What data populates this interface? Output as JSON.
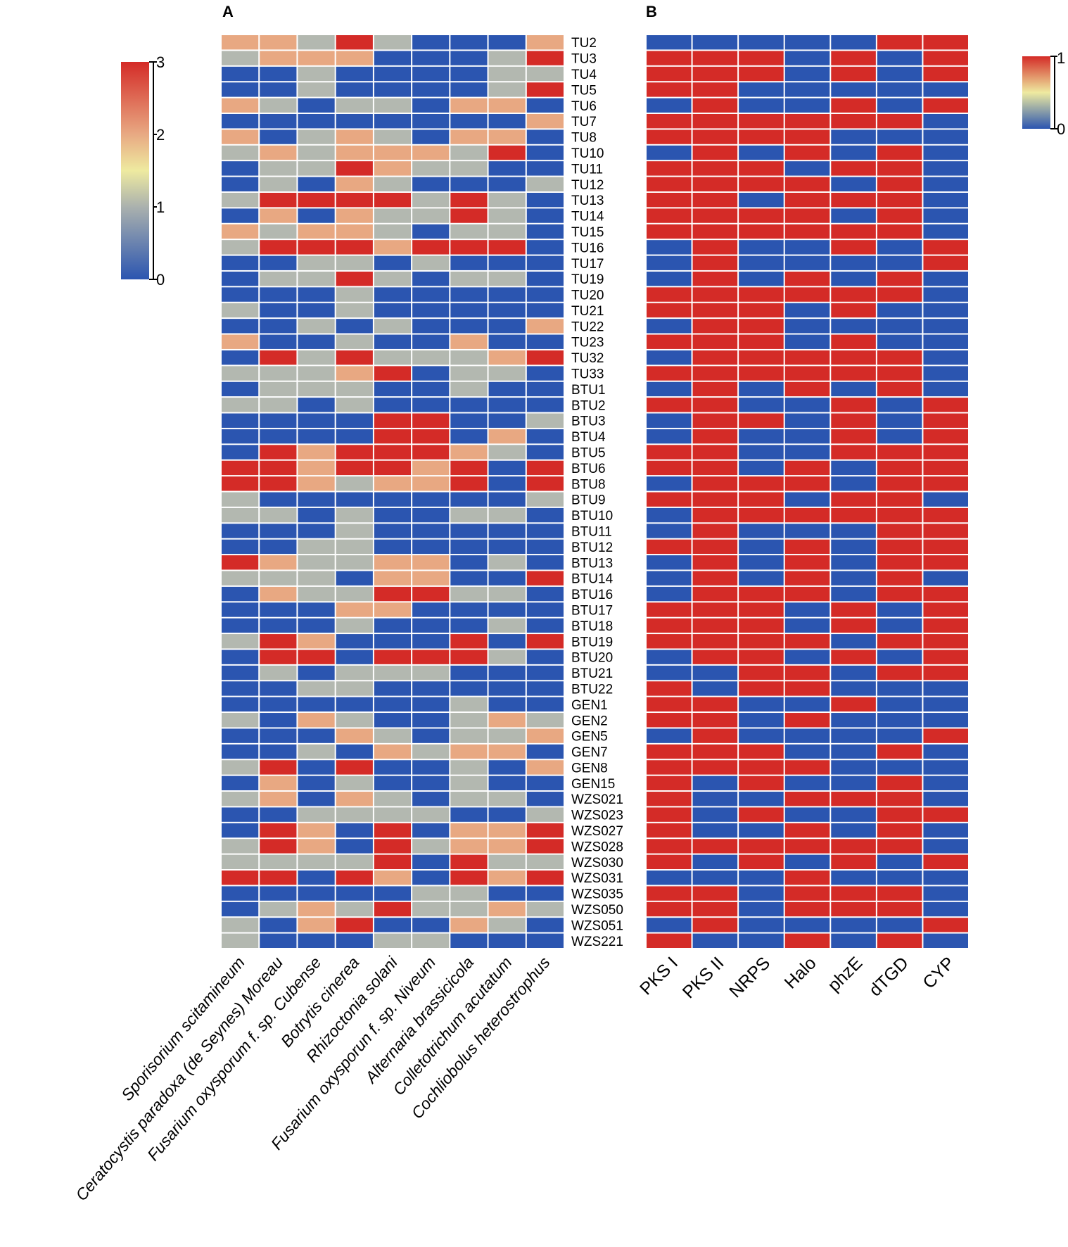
{
  "chart_data": [
    {
      "type": "heatmap",
      "panel_label": "A",
      "rows": [
        "TU2",
        "TU3",
        "TU4",
        "TU5",
        "TU6",
        "TU7",
        "TU8",
        "TU10",
        "TU11",
        "TU12",
        "TU13",
        "TU14",
        "TU15",
        "TU16",
        "TU17",
        "TU19",
        "TU20",
        "TU21",
        "TU22",
        "TU23",
        "TU32",
        "TU33",
        "BTU1",
        "BTU2",
        "BTU3",
        "BTU4",
        "BTU5",
        "BTU6",
        "BTU8",
        "BTU9",
        "BTU10",
        "BTU11",
        "BTU12",
        "BTU13",
        "BTU14",
        "BTU16",
        "BTU17",
        "BTU18",
        "BTU19",
        "BTU20",
        "BTU21",
        "BTU22",
        "GEN1",
        "GEN2",
        "GEN5",
        "GEN7",
        "GEN8",
        "GEN15",
        "WZS021",
        "WZS023",
        "WZS027",
        "WZS028",
        "WZS030",
        "WZS031",
        "WZS035",
        "WZS050",
        "WZS051",
        "WZS221"
      ],
      "columns": [
        "Sporisorium scitamineum",
        "Ceratocystis paradoxa (de Seynes) Moreau",
        "Fusarium oxysporum f. sp. Cubense",
        "Botrytis cinerea",
        "Rhizoctonia solani",
        "Fusarium oxysporun f. sp. Niveum",
        "Alternaria brassicicola",
        "Colletotrichum acutatum",
        "Cochliobolus heterostrophus"
      ],
      "values": [
        [
          2,
          2,
          1,
          3,
          1,
          0,
          0,
          0,
          2
        ],
        [
          1,
          2,
          2,
          2,
          0,
          0,
          0,
          1,
          3
        ],
        [
          0,
          0,
          1,
          0,
          0,
          0,
          0,
          1,
          1
        ],
        [
          0,
          0,
          1,
          0,
          0,
          0,
          0,
          1,
          3
        ],
        [
          2,
          1,
          0,
          1,
          1,
          0,
          2,
          2,
          0
        ],
        [
          0,
          0,
          0,
          0,
          0,
          0,
          0,
          0,
          2
        ],
        [
          2,
          0,
          1,
          2,
          1,
          0,
          2,
          2,
          0
        ],
        [
          1,
          2,
          1,
          2,
          2,
          2,
          1,
          3,
          0
        ],
        [
          0,
          1,
          1,
          3,
          2,
          1,
          1,
          0,
          0
        ],
        [
          0,
          1,
          0,
          2,
          1,
          0,
          0,
          0,
          1
        ],
        [
          1,
          3,
          3,
          3,
          3,
          1,
          3,
          1,
          0
        ],
        [
          0,
          2,
          0,
          2,
          1,
          1,
          3,
          1,
          0
        ],
        [
          2,
          1,
          2,
          2,
          1,
          0,
          1,
          1,
          0
        ],
        [
          1,
          3,
          3,
          3,
          2,
          3,
          3,
          3,
          0
        ],
        [
          0,
          0,
          1,
          1,
          0,
          1,
          0,
          0,
          0
        ],
        [
          0,
          1,
          1,
          3,
          1,
          0,
          1,
          1,
          0
        ],
        [
          0,
          0,
          0,
          1,
          0,
          0,
          0,
          0,
          0
        ],
        [
          1,
          0,
          0,
          1,
          0,
          0,
          0,
          0,
          0
        ],
        [
          0,
          0,
          1,
          0,
          1,
          0,
          0,
          0,
          2
        ],
        [
          2,
          0,
          0,
          1,
          0,
          0,
          2,
          0,
          0
        ],
        [
          0,
          3,
          1,
          3,
          1,
          1,
          1,
          2,
          3
        ],
        [
          1,
          1,
          1,
          2,
          3,
          0,
          1,
          1,
          0
        ],
        [
          0,
          1,
          1,
          1,
          0,
          0,
          1,
          0,
          0
        ],
        [
          1,
          1,
          0,
          1,
          0,
          0,
          0,
          0,
          0
        ],
        [
          0,
          0,
          0,
          0,
          3,
          3,
          0,
          0,
          1
        ],
        [
          0,
          0,
          0,
          0,
          3,
          3,
          0,
          2,
          0
        ],
        [
          0,
          3,
          2,
          3,
          3,
          3,
          2,
          1,
          0
        ],
        [
          3,
          3,
          2,
          3,
          3,
          2,
          3,
          0,
          3
        ],
        [
          3,
          3,
          2,
          1,
          2,
          2,
          3,
          0,
          3
        ],
        [
          1,
          0,
          0,
          0,
          0,
          0,
          0,
          0,
          1
        ],
        [
          1,
          1,
          0,
          1,
          0,
          0,
          1,
          1,
          0
        ],
        [
          0,
          0,
          0,
          1,
          0,
          0,
          0,
          0,
          0
        ],
        [
          0,
          0,
          1,
          1,
          0,
          0,
          0,
          0,
          0
        ],
        [
          3,
          2,
          1,
          1,
          2,
          2,
          0,
          1,
          0
        ],
        [
          1,
          1,
          1,
          0,
          2,
          2,
          0,
          0,
          3
        ],
        [
          0,
          2,
          1,
          1,
          3,
          3,
          1,
          1,
          0
        ],
        [
          0,
          0,
          0,
          2,
          2,
          0,
          0,
          0,
          0
        ],
        [
          0,
          0,
          0,
          1,
          0,
          0,
          0,
          1,
          0
        ],
        [
          1,
          3,
          2,
          0,
          0,
          0,
          3,
          0,
          3
        ],
        [
          0,
          3,
          3,
          0,
          3,
          3,
          3,
          1,
          0
        ],
        [
          0,
          1,
          0,
          1,
          1,
          1,
          0,
          0,
          0
        ],
        [
          0,
          0,
          1,
          1,
          0,
          0,
          0,
          0,
          0
        ],
        [
          0,
          0,
          0,
          0,
          0,
          0,
          1,
          0,
          0
        ],
        [
          1,
          0,
          2,
          1,
          0,
          0,
          1,
          2,
          1
        ],
        [
          0,
          0,
          0,
          2,
          1,
          0,
          1,
          1,
          2
        ],
        [
          0,
          0,
          1,
          0,
          2,
          1,
          2,
          2,
          0
        ],
        [
          1,
          3,
          0,
          3,
          0,
          0,
          1,
          0,
          2
        ],
        [
          0,
          2,
          0,
          1,
          0,
          0,
          1,
          0,
          0
        ],
        [
          1,
          2,
          0,
          2,
          1,
          0,
          1,
          1,
          0
        ],
        [
          0,
          0,
          1,
          1,
          1,
          1,
          0,
          0,
          1
        ],
        [
          0,
          3,
          2,
          0,
          3,
          0,
          2,
          2,
          3
        ],
        [
          1,
          3,
          2,
          0,
          3,
          1,
          2,
          2,
          3
        ],
        [
          1,
          1,
          1,
          1,
          3,
          0,
          3,
          1,
          1
        ],
        [
          3,
          3,
          0,
          3,
          2,
          0,
          3,
          2,
          3
        ],
        [
          0,
          0,
          0,
          0,
          0,
          1,
          1,
          0,
          0
        ],
        [
          0,
          1,
          2,
          1,
          3,
          1,
          1,
          2,
          1
        ],
        [
          1,
          0,
          2,
          3,
          0,
          0,
          2,
          1,
          0
        ],
        [
          1,
          0,
          0,
          0,
          1,
          1,
          0,
          0,
          0
        ]
      ],
      "colorscale": {
        "range": [
          0,
          3
        ],
        "ticks": [
          "0",
          "1",
          "2",
          "3"
        ],
        "colors": [
          "#2b55b0",
          "#b3b8b0",
          "#e8a882",
          "#d42b27"
        ],
        "mid": "#eeeaa0"
      },
      "legend_placement": "top-left"
    },
    {
      "type": "heatmap",
      "panel_label": "B",
      "columns": [
        "PKS I",
        "PKS II",
        "NRPS",
        "Halo",
        "phzE",
        "dTGD",
        "CYP"
      ],
      "values": [
        [
          0,
          0,
          0,
          0,
          0,
          1,
          1
        ],
        [
          1,
          1,
          1,
          0,
          1,
          0,
          1
        ],
        [
          1,
          1,
          1,
          0,
          1,
          0,
          1
        ],
        [
          1,
          1,
          0,
          0,
          0,
          0,
          0
        ],
        [
          0,
          1,
          0,
          0,
          1,
          0,
          1
        ],
        [
          1,
          1,
          1,
          1,
          1,
          1,
          0
        ],
        [
          1,
          1,
          1,
          1,
          0,
          0,
          0
        ],
        [
          0,
          1,
          0,
          1,
          0,
          1,
          0
        ],
        [
          1,
          1,
          1,
          0,
          1,
          1,
          0
        ],
        [
          1,
          1,
          1,
          1,
          0,
          1,
          0
        ],
        [
          1,
          1,
          0,
          1,
          1,
          1,
          0
        ],
        [
          1,
          1,
          1,
          1,
          0,
          1,
          0
        ],
        [
          1,
          1,
          1,
          1,
          1,
          1,
          0
        ],
        [
          0,
          1,
          0,
          0,
          1,
          0,
          1
        ],
        [
          0,
          1,
          0,
          0,
          0,
          0,
          1
        ],
        [
          0,
          1,
          0,
          1,
          0,
          1,
          0
        ],
        [
          1,
          1,
          1,
          1,
          1,
          1,
          0
        ],
        [
          1,
          1,
          1,
          0,
          1,
          0,
          0
        ],
        [
          0,
          1,
          1,
          0,
          0,
          0,
          0
        ],
        [
          1,
          1,
          1,
          0,
          1,
          0,
          0
        ],
        [
          0,
          1,
          1,
          1,
          1,
          1,
          0
        ],
        [
          1,
          1,
          1,
          1,
          1,
          1,
          0
        ],
        [
          0,
          1,
          0,
          1,
          0,
          1,
          0
        ],
        [
          1,
          1,
          0,
          0,
          1,
          0,
          1
        ],
        [
          0,
          1,
          1,
          0,
          1,
          0,
          1
        ],
        [
          0,
          1,
          0,
          0,
          1,
          0,
          1
        ],
        [
          1,
          1,
          0,
          0,
          1,
          1,
          1
        ],
        [
          1,
          1,
          0,
          1,
          0,
          1,
          1
        ],
        [
          0,
          1,
          1,
          1,
          0,
          1,
          1
        ],
        [
          1,
          1,
          1,
          0,
          1,
          1,
          0
        ],
        [
          0,
          1,
          1,
          1,
          1,
          1,
          1
        ],
        [
          0,
          1,
          0,
          0,
          0,
          1,
          1
        ],
        [
          1,
          1,
          0,
          1,
          0,
          1,
          1
        ],
        [
          0,
          1,
          0,
          1,
          0,
          1,
          1
        ],
        [
          0,
          1,
          0,
          1,
          0,
          1,
          0
        ],
        [
          0,
          1,
          1,
          1,
          0,
          1,
          1
        ],
        [
          1,
          1,
          1,
          0,
          1,
          0,
          1
        ],
        [
          1,
          1,
          1,
          0,
          1,
          0,
          1
        ],
        [
          1,
          1,
          1,
          1,
          0,
          1,
          1
        ],
        [
          0,
          1,
          1,
          0,
          1,
          0,
          1
        ],
        [
          0,
          0,
          1,
          1,
          0,
          1,
          1
        ],
        [
          1,
          0,
          1,
          1,
          0,
          0,
          0
        ],
        [
          1,
          1,
          0,
          0,
          1,
          0,
          0
        ],
        [
          1,
          1,
          0,
          1,
          0,
          0,
          0
        ],
        [
          0,
          1,
          0,
          0,
          0,
          0,
          1
        ],
        [
          1,
          1,
          1,
          0,
          0,
          1,
          0
        ],
        [
          1,
          1,
          1,
          1,
          0,
          0,
          0
        ],
        [
          1,
          0,
          1,
          0,
          0,
          1,
          0
        ],
        [
          1,
          0,
          0,
          1,
          1,
          1,
          0
        ],
        [
          1,
          0,
          1,
          0,
          0,
          1,
          1
        ],
        [
          1,
          0,
          0,
          1,
          0,
          1,
          0
        ],
        [
          1,
          1,
          1,
          1,
          1,
          1,
          0
        ],
        [
          1,
          0,
          1,
          0,
          1,
          0,
          1
        ],
        [
          0,
          0,
          0,
          1,
          0,
          0,
          0
        ],
        [
          1,
          1,
          0,
          1,
          1,
          1,
          0
        ],
        [
          1,
          1,
          0,
          1,
          1,
          1,
          0
        ],
        [
          0,
          1,
          0,
          0,
          0,
          0,
          1
        ],
        [
          1,
          0,
          0,
          1,
          0,
          1,
          0
        ]
      ],
      "colorscale": {
        "range": [
          0,
          1
        ],
        "ticks": [
          "0",
          "1"
        ],
        "colors": [
          "#2b55b0",
          "#d42b27"
        ],
        "mid": "#eeeaa0"
      },
      "legend_placement": "top-right"
    }
  ]
}
